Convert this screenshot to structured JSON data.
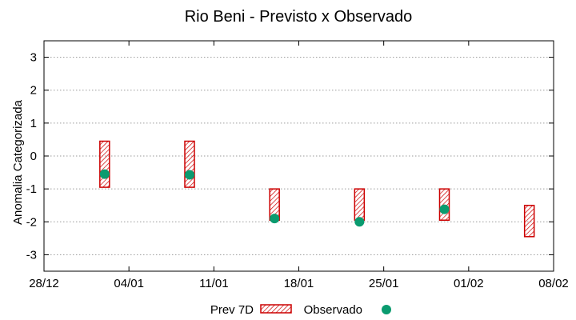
{
  "chart_data": {
    "type": "range-and-scatter",
    "title": "Rio Beni - Previsto x Observado",
    "xlabel": "",
    "ylabel": "Anomalia Categorizada",
    "ylim": [
      -3.5,
      3.5
    ],
    "yticks": [
      -3,
      -2,
      -1,
      0,
      1,
      2,
      3
    ],
    "xlim_days": [
      0,
      42
    ],
    "xticks": [
      {
        "day": 0,
        "label": "28/12"
      },
      {
        "day": 7,
        "label": "04/01"
      },
      {
        "day": 14,
        "label": "11/01"
      },
      {
        "day": 21,
        "label": "18/01"
      },
      {
        "day": 28,
        "label": "25/01"
      },
      {
        "day": 35,
        "label": "01/02"
      },
      {
        "day": 42,
        "label": "08/02"
      }
    ],
    "grid": true,
    "series": [
      {
        "name": "Prev 7D",
        "kind": "range-box",
        "color": "#cc0000",
        "points": [
          {
            "day": 5,
            "low": -0.95,
            "high": 0.45
          },
          {
            "day": 12,
            "low": -0.95,
            "high": 0.45
          },
          {
            "day": 19,
            "low": -1.95,
            "high": -1.0
          },
          {
            "day": 26,
            "low": -1.95,
            "high": -1.0
          },
          {
            "day": 33,
            "low": -1.95,
            "high": -1.0
          },
          {
            "day": 40,
            "low": -2.45,
            "high": -1.5
          }
        ]
      },
      {
        "name": "Observado",
        "kind": "scatter",
        "color": "#0a9b6f",
        "points": [
          {
            "day": 5,
            "y": -0.55
          },
          {
            "day": 12,
            "y": -0.57
          },
          {
            "day": 19,
            "y": -1.9
          },
          {
            "day": 26,
            "y": -2.0
          },
          {
            "day": 33,
            "y": -1.62
          }
        ]
      }
    ],
    "legend": {
      "placement": "bottom-center"
    }
  }
}
